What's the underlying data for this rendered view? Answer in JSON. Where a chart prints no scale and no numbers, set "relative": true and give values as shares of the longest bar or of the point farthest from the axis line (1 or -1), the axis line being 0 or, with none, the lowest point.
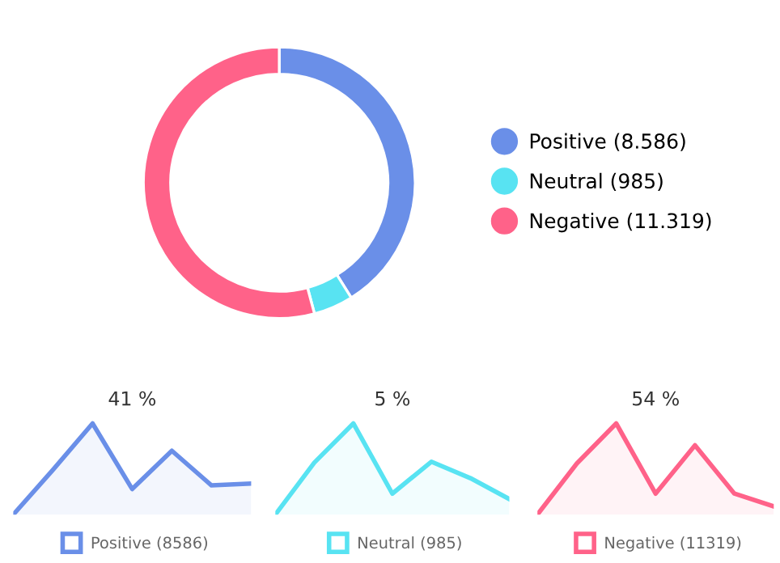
{
  "chart_data": [
    {
      "type": "donut",
      "categories": [
        "Positive (8.586)",
        "Neutral (985)",
        "Negative (11.319)"
      ],
      "values": [
        8586,
        985,
        11319
      ],
      "colors": [
        "#6a8fe8",
        "#58e3f2",
        "#ff6289"
      ],
      "legend": "right"
    },
    {
      "type": "area",
      "title": "41 %",
      "relative": true,
      "categories": [
        null,
        null,
        null,
        null,
        null,
        null,
        null
      ],
      "series": [
        {
          "name": "Positive (8586)",
          "color": "#6a8fe8",
          "values": [
            0,
            0.49,
            1,
            0.28,
            0.7,
            0.32,
            0.34
          ]
        }
      ],
      "legend": "bottom"
    },
    {
      "type": "area",
      "title": "5 %",
      "relative": true,
      "categories": [
        null,
        null,
        null,
        null,
        null,
        null,
        null
      ],
      "series": [
        {
          "name": "Neutral (985)",
          "color": "#58e3f2",
          "values": [
            0,
            0.57,
            1,
            0.23,
            0.58,
            0.4,
            0.17
          ]
        }
      ],
      "legend": "bottom"
    },
    {
      "type": "area",
      "title": "54 %",
      "relative": true,
      "categories": [
        null,
        null,
        null,
        null,
        null,
        null,
        null
      ],
      "series": [
        {
          "name": "Negative (11319)",
          "color": "#ff6289",
          "values": [
            0,
            0.56,
            1,
            0.23,
            0.76,
            0.23,
            0.09
          ]
        }
      ],
      "legend": "bottom"
    }
  ]
}
